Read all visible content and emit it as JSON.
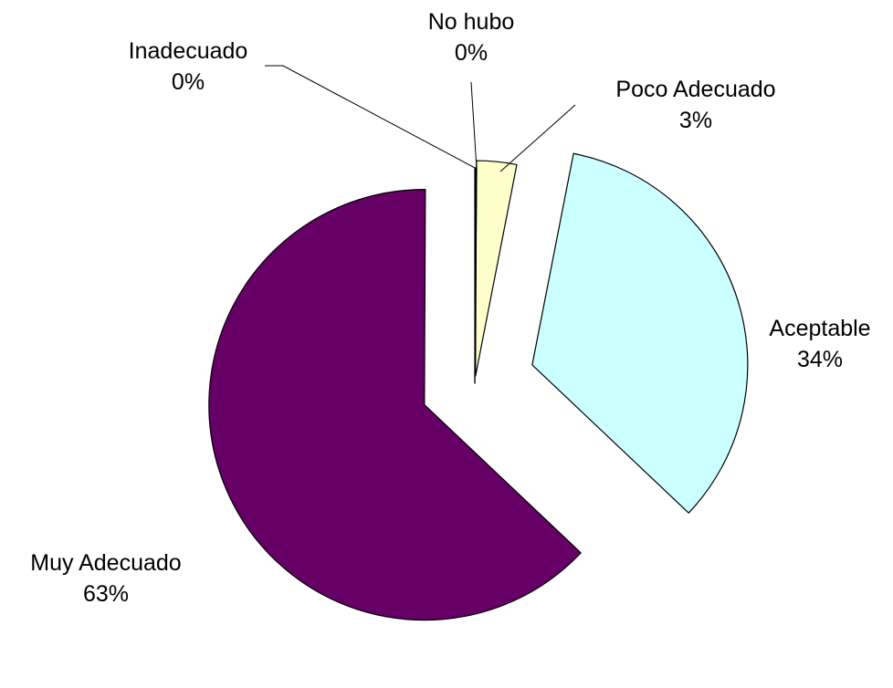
{
  "chart_data": {
    "type": "pie",
    "title": "",
    "legend": "none",
    "slices": [
      {
        "name": "No hubo",
        "value": 0,
        "label": "0%",
        "color": "#ffffff"
      },
      {
        "name": "Poco Adecuado",
        "value": 3,
        "label": "3%",
        "color": "#ffffcc"
      },
      {
        "name": "Aceptable",
        "value": 34,
        "label": "34%",
        "color": "#ccffff"
      },
      {
        "name": "Muy Adecuado",
        "value": 63,
        "label": "63%",
        "color": "#660066"
      },
      {
        "name": "Inadecuado",
        "value": 0,
        "label": "0%",
        "color": "#ffffff"
      }
    ]
  }
}
